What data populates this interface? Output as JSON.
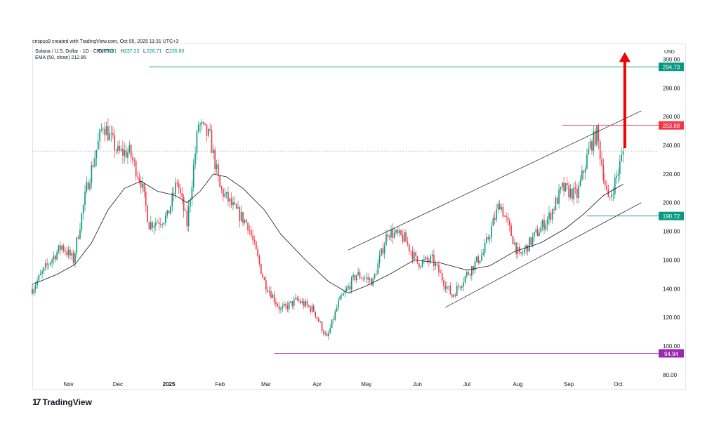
{
  "credit": "crispus9 created with TradingView.com, Oct 05, 2025 11:31 UTC+3",
  "brand": "TradingView",
  "chart_data": {
    "type": "candlestick",
    "symbol_line": "Solana / U.S. Dollar · 1D · CRYPTO",
    "ohlc": {
      "O": "228.01",
      "H": "237.23",
      "L": "226.71",
      "C": "235.80"
    },
    "indicator_line": "EMA (50, close)  212.85",
    "currency": "USD",
    "y_ticks": [
      80,
      100,
      120,
      140,
      160,
      180,
      200,
      220,
      240,
      260,
      280,
      300
    ],
    "ylim": [
      78,
      310
    ],
    "x_ticks": [
      {
        "label": "Nov",
        "date": "2024-11-01"
      },
      {
        "label": "Dec",
        "date": "2024-12-01"
      },
      {
        "label": "2025",
        "date": "2025-01-01",
        "bold": true
      },
      {
        "label": "Feb",
        "date": "2025-02-01"
      },
      {
        "label": "Mar",
        "date": "2025-03-01"
      },
      {
        "label": "Apr",
        "date": "2025-04-01"
      },
      {
        "label": "May",
        "date": "2025-05-01"
      },
      {
        "label": "Jun",
        "date": "2025-06-01"
      },
      {
        "label": "Jul",
        "date": "2025-07-01"
      },
      {
        "label": "Aug",
        "date": "2025-08-01"
      },
      {
        "label": "Sep",
        "date": "2025-09-01"
      },
      {
        "label": "Oct",
        "date": "2025-10-01"
      }
    ],
    "xlim": [
      "2024-10-10",
      "2025-10-20"
    ],
    "close_series": [
      {
        "date": "2024-10-10",
        "close": 140
      },
      {
        "date": "2024-10-20",
        "close": 158
      },
      {
        "date": "2024-10-28",
        "close": 170
      },
      {
        "date": "2024-11-04",
        "close": 160
      },
      {
        "date": "2024-11-12",
        "close": 210
      },
      {
        "date": "2024-11-22",
        "close": 255
      },
      {
        "date": "2024-12-01",
        "close": 235
      },
      {
        "date": "2024-12-08",
        "close": 235
      },
      {
        "date": "2024-12-15",
        "close": 215
      },
      {
        "date": "2024-12-20",
        "close": 185
      },
      {
        "date": "2024-12-31",
        "close": 190
      },
      {
        "date": "2025-01-06",
        "close": 215
      },
      {
        "date": "2025-01-12",
        "close": 185
      },
      {
        "date": "2025-01-19",
        "close": 255
      },
      {
        "date": "2025-01-26",
        "close": 245
      },
      {
        "date": "2025-02-01",
        "close": 210
      },
      {
        "date": "2025-02-10",
        "close": 195
      },
      {
        "date": "2025-02-18",
        "close": 185
      },
      {
        "date": "2025-02-28",
        "close": 145
      },
      {
        "date": "2025-03-10",
        "close": 125
      },
      {
        "date": "2025-03-20",
        "close": 132
      },
      {
        "date": "2025-03-30",
        "close": 125
      },
      {
        "date": "2025-04-07",
        "close": 105
      },
      {
        "date": "2025-04-14",
        "close": 130
      },
      {
        "date": "2025-04-25",
        "close": 150
      },
      {
        "date": "2025-05-05",
        "close": 145
      },
      {
        "date": "2025-05-14",
        "close": 180
      },
      {
        "date": "2025-05-24",
        "close": 175
      },
      {
        "date": "2025-06-01",
        "close": 158
      },
      {
        "date": "2025-06-10",
        "close": 160
      },
      {
        "date": "2025-06-22",
        "close": 135
      },
      {
        "date": "2025-07-01",
        "close": 150
      },
      {
        "date": "2025-07-11",
        "close": 165
      },
      {
        "date": "2025-07-21",
        "close": 200
      },
      {
        "date": "2025-08-02",
        "close": 162
      },
      {
        "date": "2025-08-12",
        "close": 178
      },
      {
        "date": "2025-08-20",
        "close": 190
      },
      {
        "date": "2025-08-28",
        "close": 210
      },
      {
        "date": "2025-09-06",
        "close": 205
      },
      {
        "date": "2025-09-14",
        "close": 240
      },
      {
        "date": "2025-09-18",
        "close": 248
      },
      {
        "date": "2025-09-25",
        "close": 200
      },
      {
        "date": "2025-10-01",
        "close": 222
      },
      {
        "date": "2025-10-04",
        "close": 235.8
      }
    ],
    "ema_series": [
      {
        "date": "2024-10-10",
        "ema": 143
      },
      {
        "date": "2024-10-25",
        "ema": 150
      },
      {
        "date": "2024-11-05",
        "ema": 157
      },
      {
        "date": "2024-11-15",
        "ema": 172
      },
      {
        "date": "2024-11-25",
        "ema": 195
      },
      {
        "date": "2024-12-05",
        "ema": 210
      },
      {
        "date": "2024-12-15",
        "ema": 215
      },
      {
        "date": "2024-12-25",
        "ema": 208
      },
      {
        "date": "2025-01-05",
        "ema": 205
      },
      {
        "date": "2025-01-12",
        "ema": 200
      },
      {
        "date": "2025-01-20",
        "ema": 208
      },
      {
        "date": "2025-01-28",
        "ema": 220
      },
      {
        "date": "2025-02-05",
        "ema": 218
      },
      {
        "date": "2025-02-15",
        "ema": 210
      },
      {
        "date": "2025-02-28",
        "ema": 195
      },
      {
        "date": "2025-03-10",
        "ema": 178
      },
      {
        "date": "2025-03-25",
        "ema": 160
      },
      {
        "date": "2025-04-08",
        "ema": 145
      },
      {
        "date": "2025-04-20",
        "ema": 137
      },
      {
        "date": "2025-05-01",
        "ema": 142
      },
      {
        "date": "2025-05-15",
        "ema": 150
      },
      {
        "date": "2025-05-30",
        "ema": 160
      },
      {
        "date": "2025-06-15",
        "ema": 158
      },
      {
        "date": "2025-07-01",
        "ema": 153
      },
      {
        "date": "2025-07-15",
        "ema": 156
      },
      {
        "date": "2025-07-30",
        "ema": 166
      },
      {
        "date": "2025-08-15",
        "ema": 172
      },
      {
        "date": "2025-08-30",
        "ema": 182
      },
      {
        "date": "2025-09-10",
        "ema": 192
      },
      {
        "date": "2025-09-22",
        "ema": 205
      },
      {
        "date": "2025-10-04",
        "ema": 212.85
      }
    ],
    "horizontal_levels": [
      {
        "value": 294.73,
        "label": "294.73",
        "color": "#089981",
        "from": "2024-12-20"
      },
      {
        "value": 253.89,
        "label": "253.89",
        "color": "#f23645",
        "from": "2025-08-28"
      },
      {
        "value": 190.72,
        "label": "190.72",
        "color": "#089981",
        "from": "2025-09-12"
      },
      {
        "value": 94.94,
        "label": "94.94",
        "color": "#9c27b0",
        "from": "2025-03-06"
      }
    ],
    "current_price_line": 236,
    "trendlines": [
      {
        "from": {
          "date": "2025-04-20",
          "value": 167
        },
        "to": {
          "date": "2025-10-15",
          "value": 264
        }
      },
      {
        "from": {
          "date": "2025-06-18",
          "value": 127
        },
        "to": {
          "date": "2025-10-15",
          "value": 200
        }
      }
    ],
    "arrow": {
      "color": "#f20000",
      "from": {
        "date": "2025-10-05",
        "value": 238
      },
      "to": {
        "date": "2025-10-05",
        "value": 305
      }
    },
    "colors": {
      "up": "#089981",
      "down": "#f23645",
      "ema": "#131722",
      "axis_text": "#131722",
      "grid": "#f0f3fa"
    }
  }
}
